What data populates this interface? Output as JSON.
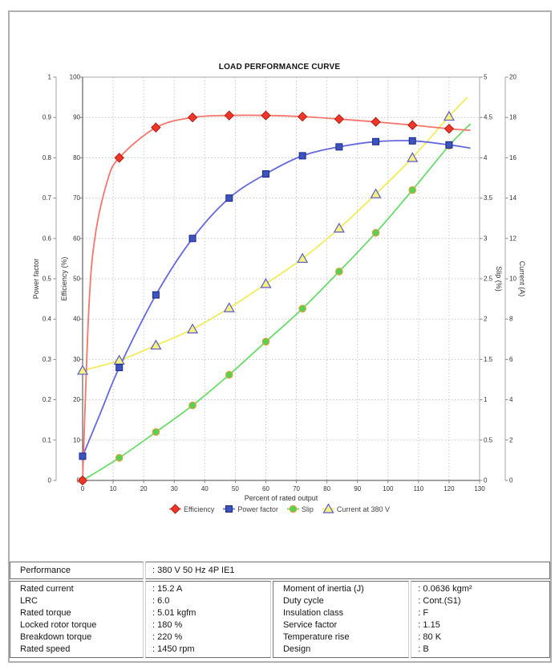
{
  "chart_data": {
    "type": "line",
    "title": "LOAD PERFORMANCE CURVE",
    "xlabel": "Percent of rated output",
    "x_axis": {
      "min": 0,
      "max": 130,
      "step": 10
    },
    "y_axes": {
      "power_factor": {
        "label": "Power factor",
        "min": 0,
        "max": 1,
        "step": 0.1,
        "side": "left"
      },
      "efficiency": {
        "label": "Efficiency (%)",
        "min": 0,
        "max": 100,
        "step": 10,
        "side": "left"
      },
      "slip": {
        "label": "Slip (%)",
        "min": 0,
        "max": 5,
        "step": 0.5,
        "side": "right"
      },
      "current": {
        "label": "Current (A)",
        "min": 0,
        "max": 20,
        "step": 2,
        "side": "right"
      }
    },
    "x": [
      0,
      12,
      24,
      36,
      48,
      60,
      72,
      84,
      96,
      108,
      120
    ],
    "grid": true,
    "legend_position": "bottom",
    "series": [
      {
        "name": "Efficiency",
        "axis": "efficiency",
        "marker": "diamond",
        "line_color": "#f4766d",
        "fill": "#ee362a",
        "stroke": "#b51c10",
        "values": [
          0,
          80,
          87.5,
          90,
          90.5,
          90.5,
          90.2,
          89.6,
          88.9,
          88.1,
          87.2
        ],
        "line": [
          [
            0,
            0
          ],
          [
            2,
            42
          ],
          [
            4,
            60
          ],
          [
            8,
            74
          ],
          [
            12,
            80
          ],
          [
            24,
            87.5
          ],
          [
            36,
            90
          ],
          [
            48,
            90.5
          ],
          [
            60,
            90.5
          ],
          [
            72,
            90.2
          ],
          [
            84,
            89.6
          ],
          [
            96,
            88.9
          ],
          [
            108,
            88.1
          ],
          [
            120,
            87.2
          ],
          [
            127,
            86.8
          ]
        ]
      },
      {
        "name": "Power factor",
        "axis": "power_factor",
        "marker": "square",
        "line_color": "#6569dd",
        "fill": "#3c55bb",
        "stroke": "#1c2490",
        "values": [
          0.06,
          0.28,
          0.46,
          0.6,
          0.7,
          0.76,
          0.805,
          0.827,
          0.84,
          0.842,
          0.832
        ],
        "line": [
          [
            0,
            0.06
          ],
          [
            6,
            0.17
          ],
          [
            12,
            0.28
          ],
          [
            24,
            0.46
          ],
          [
            36,
            0.6
          ],
          [
            48,
            0.7
          ],
          [
            60,
            0.76
          ],
          [
            72,
            0.805
          ],
          [
            84,
            0.827
          ],
          [
            96,
            0.84
          ],
          [
            108,
            0.842
          ],
          [
            120,
            0.832
          ],
          [
            127,
            0.824
          ]
        ]
      },
      {
        "name": "Slip",
        "axis": "slip",
        "marker": "circle",
        "line_color": "#69db69",
        "fill": "#52d452",
        "stroke": "#dd9f3c",
        "values": [
          0,
          0.28,
          0.6,
          0.93,
          1.31,
          1.72,
          2.13,
          2.59,
          3.07,
          3.6,
          4.15
        ],
        "line": [
          [
            0,
            0
          ],
          [
            12,
            0.28
          ],
          [
            24,
            0.6
          ],
          [
            36,
            0.93
          ],
          [
            48,
            1.31
          ],
          [
            60,
            1.72
          ],
          [
            72,
            2.13
          ],
          [
            84,
            2.59
          ],
          [
            96,
            3.07
          ],
          [
            108,
            3.6
          ],
          [
            120,
            4.15
          ],
          [
            127,
            4.42
          ]
        ]
      },
      {
        "name": "Current at 380 V",
        "axis": "current",
        "marker": "triangle",
        "line_color": "#f1ec58",
        "fill": "#f6f180",
        "stroke": "#5a5cc8",
        "values": [
          5.45,
          5.95,
          6.7,
          7.5,
          8.55,
          9.75,
          11.0,
          12.5,
          14.2,
          16.0,
          18.05
        ],
        "line": [
          [
            0,
            5.45
          ],
          [
            12,
            5.95
          ],
          [
            24,
            6.7
          ],
          [
            36,
            7.5
          ],
          [
            48,
            8.55
          ],
          [
            60,
            9.75
          ],
          [
            72,
            11.0
          ],
          [
            84,
            12.5
          ],
          [
            96,
            14.2
          ],
          [
            108,
            16.0
          ],
          [
            120,
            18.05
          ],
          [
            126,
            19.0
          ]
        ]
      }
    ]
  },
  "table": {
    "performance_row": {
      "label": "Performance",
      "value": ": 380 V 50 Hz 4P IE1"
    },
    "left_rows": [
      {
        "label": "Rated current",
        "value": ": 15.2 A"
      },
      {
        "label": "LRC",
        "value": ": 6.0"
      },
      {
        "label": "Rated torque",
        "value": ": 5.01 kgfm"
      },
      {
        "label": "Locked rotor torque",
        "value": ": 180 %"
      },
      {
        "label": "Breakdown torque",
        "value": ": 220 %"
      },
      {
        "label": "Rated speed",
        "value": ": 1450 rpm"
      }
    ],
    "right_rows": [
      {
        "label": "Moment of inertia (J)",
        "value": ": 0.0636 kgm²"
      },
      {
        "label": "Duty cycle",
        "value": ": Cont.(S1)"
      },
      {
        "label": "Insulation class",
        "value": ": F"
      },
      {
        "label": "Service factor",
        "value": ": 1.15"
      },
      {
        "label": "Temperature rise",
        "value": ": 80 K"
      },
      {
        "label": "Design",
        "value": ": B"
      }
    ]
  }
}
